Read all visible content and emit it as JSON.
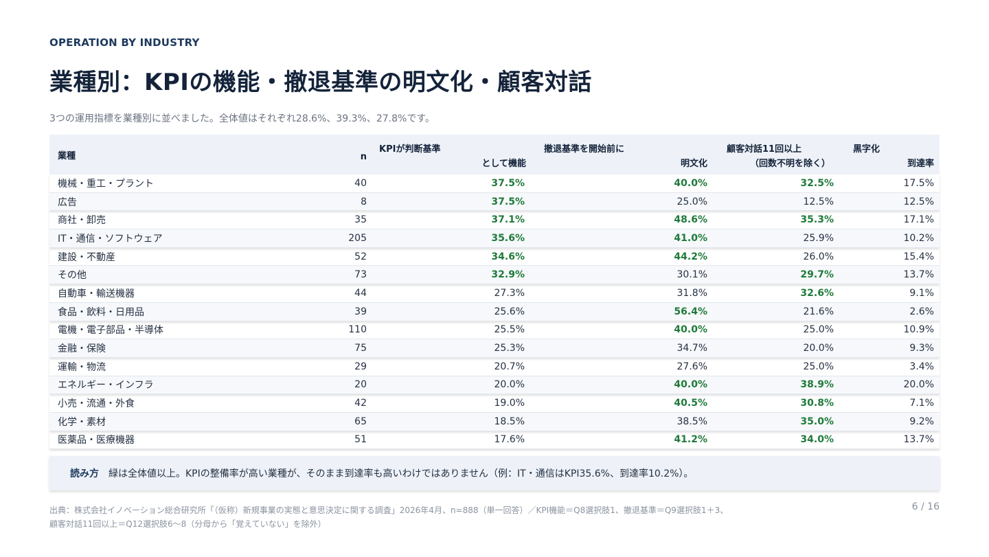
{
  "eyebrow": "OPERATION BY INDUSTRY",
  "title": "業種別：KPIの機能・撤退基準の明文化・顧客対話",
  "subtitle": "3つの運用指標を業種別に並べました。全体値はそれぞれ28.6%、39.3%、27.8%です。",
  "table": {
    "headers": {
      "industry": "業種",
      "n": "n",
      "kpi_line1": "KPIが判断基準",
      "kpi_line2": "として機能",
      "exit_line1": "撤退基準を開始前に",
      "exit_line2": "明文化",
      "dialog_line1": "顧客対話11回以上",
      "dialog_line2": "（回数不明を除く）",
      "profit_line1": "黒字化",
      "profit_line2": "到達率"
    },
    "highlight_color": "#1f7a3a",
    "rows": [
      {
        "industry": "機械・重工・プラント",
        "n": "40",
        "kpi": "37.5%",
        "kpi_hi": true,
        "exit": "40.0%",
        "exit_hi": true,
        "dialog": "32.5%",
        "dialog_hi": true,
        "profit": "17.5%"
      },
      {
        "industry": "広告",
        "n": "8",
        "kpi": "37.5%",
        "kpi_hi": true,
        "exit": "25.0%",
        "exit_hi": false,
        "dialog": "12.5%",
        "dialog_hi": false,
        "profit": "12.5%"
      },
      {
        "industry": "商社・卸売",
        "n": "35",
        "kpi": "37.1%",
        "kpi_hi": true,
        "exit": "48.6%",
        "exit_hi": true,
        "dialog": "35.3%",
        "dialog_hi": true,
        "profit": "17.1%"
      },
      {
        "industry": "IT・通信・ソフトウェア",
        "n": "205",
        "kpi": "35.6%",
        "kpi_hi": true,
        "exit": "41.0%",
        "exit_hi": true,
        "dialog": "25.9%",
        "dialog_hi": false,
        "profit": "10.2%"
      },
      {
        "industry": "建設・不動産",
        "n": "52",
        "kpi": "34.6%",
        "kpi_hi": true,
        "exit": "44.2%",
        "exit_hi": true,
        "dialog": "26.0%",
        "dialog_hi": false,
        "profit": "15.4%"
      },
      {
        "industry": "その他",
        "n": "73",
        "kpi": "32.9%",
        "kpi_hi": true,
        "exit": "30.1%",
        "exit_hi": false,
        "dialog": "29.7%",
        "dialog_hi": true,
        "profit": "13.7%"
      },
      {
        "industry": "自動車・輸送機器",
        "n": "44",
        "kpi": "27.3%",
        "kpi_hi": false,
        "exit": "31.8%",
        "exit_hi": false,
        "dialog": "32.6%",
        "dialog_hi": true,
        "profit": "9.1%"
      },
      {
        "industry": "食品・飲料・日用品",
        "n": "39",
        "kpi": "25.6%",
        "kpi_hi": false,
        "exit": "56.4%",
        "exit_hi": true,
        "dialog": "21.6%",
        "dialog_hi": false,
        "profit": "2.6%"
      },
      {
        "industry": "電機・電子部品・半導体",
        "n": "110",
        "kpi": "25.5%",
        "kpi_hi": false,
        "exit": "40.0%",
        "exit_hi": true,
        "dialog": "25.0%",
        "dialog_hi": false,
        "profit": "10.9%"
      },
      {
        "industry": "金融・保険",
        "n": "75",
        "kpi": "25.3%",
        "kpi_hi": false,
        "exit": "34.7%",
        "exit_hi": false,
        "dialog": "20.0%",
        "dialog_hi": false,
        "profit": "9.3%"
      },
      {
        "industry": "運輸・物流",
        "n": "29",
        "kpi": "20.7%",
        "kpi_hi": false,
        "exit": "27.6%",
        "exit_hi": false,
        "dialog": "25.0%",
        "dialog_hi": false,
        "profit": "3.4%"
      },
      {
        "industry": "エネルギー・インフラ",
        "n": "20",
        "kpi": "20.0%",
        "kpi_hi": false,
        "exit": "40.0%",
        "exit_hi": true,
        "dialog": "38.9%",
        "dialog_hi": true,
        "profit": "20.0%"
      },
      {
        "industry": "小売・流通・外食",
        "n": "42",
        "kpi": "19.0%",
        "kpi_hi": false,
        "exit": "40.5%",
        "exit_hi": true,
        "dialog": "30.8%",
        "dialog_hi": true,
        "profit": "7.1%"
      },
      {
        "industry": "化学・素材",
        "n": "65",
        "kpi": "18.5%",
        "kpi_hi": false,
        "exit": "38.5%",
        "exit_hi": false,
        "dialog": "35.0%",
        "dialog_hi": true,
        "profit": "9.2%"
      },
      {
        "industry": "医薬品・医療機器",
        "n": "51",
        "kpi": "17.6%",
        "kpi_hi": false,
        "exit": "41.2%",
        "exit_hi": true,
        "dialog": "34.0%",
        "dialog_hi": true,
        "profit": "13.7%"
      }
    ]
  },
  "note": {
    "label": "読み方",
    "text": "緑は全体値以上。KPIの整備率が高い業種が、そのまま到達率も高いわけではありません（例：IT・通信はKPI35.6%、到達率10.2%）。"
  },
  "source": {
    "line1": "出典：株式会社イノベーション総合研究所「（仮称）新規事業の実態と意思決定に関する調査」2026年4月、n=888（単一回答）／KPI機能＝Q8選択肢1、撤退基準＝Q9選択肢1＋3、",
    "line2": "顧客対話11回以上＝Q12選択肢6〜8（分母から「覚えていない」を除外）"
  },
  "page_number": "6 / 16"
}
